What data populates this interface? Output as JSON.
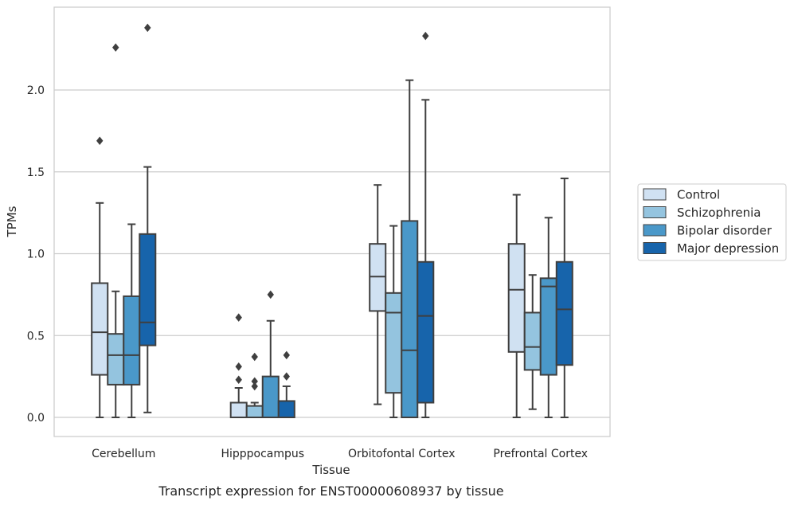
{
  "chart_data": {
    "type": "box",
    "caption": "Transcript expression for ENST00000608937 by tissue",
    "xlabel": "Tissue",
    "ylabel": "TPMs",
    "ylim": [
      -0.11,
      2.51
    ],
    "yticks": [
      0.0,
      0.5,
      1.0,
      1.5,
      2.0
    ],
    "ytick_labels": [
      "0.0",
      "0.5",
      "1.0",
      "1.5",
      "2.0"
    ],
    "grid": true,
    "legend_position": "right",
    "categories": [
      "Cerebellum",
      "Hipppocampus",
      "Orbitofontal Cortex",
      "Prefrontal Cortex"
    ],
    "series": [
      {
        "name": "Control",
        "color": "#d0e1f2",
        "boxes": [
          {
            "whislo": 0.0,
            "q1": 0.26,
            "med": 0.52,
            "q3": 0.82,
            "whishi": 1.31,
            "fliers": [
              1.69
            ]
          },
          {
            "whislo": 0.0,
            "q1": 0.0,
            "med": 0.0,
            "q3": 0.09,
            "whishi": 0.18,
            "fliers": [
              0.23,
              0.31,
              0.61
            ]
          },
          {
            "whislo": 0.08,
            "q1": 0.65,
            "med": 0.86,
            "q3": 1.06,
            "whishi": 1.42,
            "fliers": []
          },
          {
            "whislo": 0.0,
            "q1": 0.4,
            "med": 0.78,
            "q3": 1.06,
            "whishi": 1.36,
            "fliers": []
          }
        ]
      },
      {
        "name": "Schizophrenia",
        "color": "#94c4df",
        "boxes": [
          {
            "whislo": 0.0,
            "q1": 0.2,
            "med": 0.38,
            "q3": 0.51,
            "whishi": 0.77,
            "fliers": [
              2.26
            ]
          },
          {
            "whislo": 0.0,
            "q1": 0.0,
            "med": 0.0,
            "q3": 0.07,
            "whishi": 0.09,
            "fliers": [
              0.19,
              0.22,
              0.37
            ]
          },
          {
            "whislo": 0.0,
            "q1": 0.15,
            "med": 0.64,
            "q3": 0.76,
            "whishi": 1.17,
            "fliers": []
          },
          {
            "whislo": 0.05,
            "q1": 0.29,
            "med": 0.43,
            "q3": 0.64,
            "whishi": 0.87,
            "fliers": []
          }
        ]
      },
      {
        "name": "Bipolar disorder",
        "color": "#4a98c9",
        "boxes": [
          {
            "whislo": 0.0,
            "q1": 0.2,
            "med": 0.38,
            "q3": 0.74,
            "whishi": 1.18,
            "fliers": []
          },
          {
            "whislo": 0.0,
            "q1": 0.0,
            "med": 0.0,
            "q3": 0.25,
            "whishi": 0.59,
            "fliers": [
              0.75
            ]
          },
          {
            "whislo": 0.0,
            "q1": 0.0,
            "med": 0.41,
            "q3": 1.2,
            "whishi": 2.06,
            "fliers": []
          },
          {
            "whislo": 0.0,
            "q1": 0.26,
            "med": 0.8,
            "q3": 0.85,
            "whishi": 1.22,
            "fliers": []
          }
        ]
      },
      {
        "name": "Major depression",
        "color": "#1764ab",
        "boxes": [
          {
            "whislo": 0.03,
            "q1": 0.44,
            "med": 0.58,
            "q3": 1.12,
            "whishi": 1.53,
            "fliers": [
              2.38
            ]
          },
          {
            "whislo": 0.0,
            "q1": 0.0,
            "med": 0.0,
            "q3": 0.1,
            "whishi": 0.19,
            "fliers": [
              0.25,
              0.38
            ]
          },
          {
            "whislo": 0.0,
            "q1": 0.09,
            "med": 0.62,
            "q3": 0.95,
            "whishi": 1.94,
            "fliers": [
              2.33
            ]
          },
          {
            "whislo": 0.0,
            "q1": 0.32,
            "med": 0.66,
            "q3": 0.95,
            "whishi": 1.46,
            "fliers": []
          }
        ]
      }
    ]
  }
}
